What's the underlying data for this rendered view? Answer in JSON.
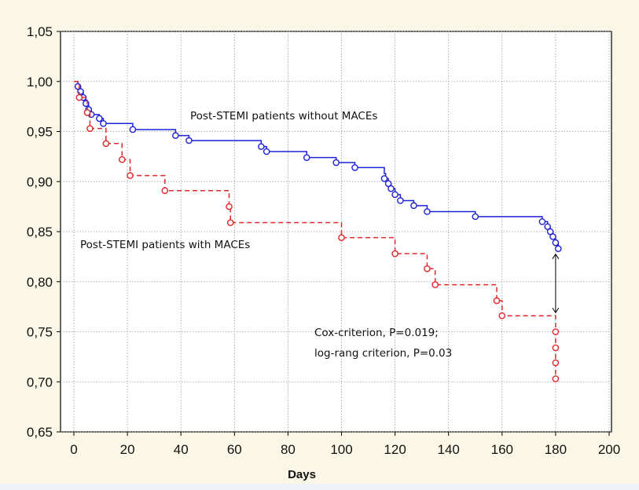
{
  "chart_data": {
    "type": "line",
    "title": "",
    "xlabel": "Days",
    "ylabel": "",
    "xlim": [
      0,
      200
    ],
    "ylim": [
      0.65,
      1.05
    ],
    "x_ticks": [
      0,
      20,
      40,
      60,
      80,
      100,
      120,
      140,
      160,
      180,
      200
    ],
    "y_ticks": [
      1.05,
      1.0,
      0.95,
      0.9,
      0.85,
      0.8,
      0.75,
      0.7,
      0.65
    ],
    "y_tick_labels": [
      "1,05",
      "1,00",
      "0,95",
      "0,90",
      "0,85",
      "0,80",
      "0,75",
      "0,70",
      "0,65"
    ],
    "grid": true,
    "series": [
      {
        "name": "Post-STEMI patients without MACEs",
        "color": "#1f22d6",
        "line_style": "solid",
        "steps": [
          [
            0,
            1.0
          ],
          [
            1.5,
            0.995
          ],
          [
            2.5,
            0.99
          ],
          [
            3.5,
            0.984
          ],
          [
            4.5,
            0.978
          ],
          [
            5.5,
            0.972
          ],
          [
            6.5,
            0.967
          ],
          [
            9.5,
            0.963
          ],
          [
            11,
            0.958
          ],
          [
            22,
            0.952
          ],
          [
            38,
            0.946
          ],
          [
            43,
            0.941
          ],
          [
            70,
            0.935
          ],
          [
            72,
            0.93
          ],
          [
            87,
            0.924
          ],
          [
            98,
            0.919
          ],
          [
            105,
            0.914
          ],
          [
            116,
            0.908
          ],
          [
            116.5,
            0.903
          ],
          [
            117.5,
            0.898
          ],
          [
            118.5,
            0.893
          ],
          [
            120,
            0.887
          ],
          [
            122,
            0.881
          ],
          [
            127,
            0.876
          ],
          [
            132,
            0.87
          ],
          [
            150,
            0.865
          ],
          [
            175,
            0.86
          ],
          [
            177,
            0.855
          ],
          [
            178,
            0.85
          ],
          [
            179,
            0.845
          ],
          [
            180,
            0.839
          ],
          [
            181,
            0.833
          ]
        ],
        "censored": [
          [
            1.5,
            0.995
          ],
          [
            2.5,
            0.99
          ],
          [
            3.5,
            0.984
          ],
          [
            4.5,
            0.978
          ],
          [
            5.5,
            0.972
          ],
          [
            6.5,
            0.967
          ],
          [
            9.5,
            0.963
          ],
          [
            11,
            0.958
          ],
          [
            22,
            0.952
          ],
          [
            38,
            0.946
          ],
          [
            43,
            0.941
          ],
          [
            70,
            0.935
          ],
          [
            72,
            0.93
          ],
          [
            87,
            0.924
          ],
          [
            98,
            0.919
          ],
          [
            105,
            0.914
          ],
          [
            116,
            0.903
          ],
          [
            117.5,
            0.898
          ],
          [
            118.5,
            0.893
          ],
          [
            120,
            0.887
          ],
          [
            122,
            0.881
          ],
          [
            127,
            0.876
          ],
          [
            132,
            0.87
          ],
          [
            150,
            0.865
          ],
          [
            175,
            0.86
          ],
          [
            177,
            0.855
          ],
          [
            178,
            0.85
          ],
          [
            179,
            0.845
          ],
          [
            180,
            0.839
          ],
          [
            181,
            0.833
          ]
        ],
        "end_x": 181
      },
      {
        "name": "Post-STEMI patients with MACEs",
        "color": "#e2262a",
        "line_style": "dashed",
        "steps": [
          [
            0,
            1.0
          ],
          [
            2,
            0.984
          ],
          [
            5,
            0.969
          ],
          [
            6,
            0.953
          ],
          [
            12,
            0.938
          ],
          [
            18,
            0.922
          ],
          [
            21,
            0.906
          ],
          [
            34,
            0.891
          ],
          [
            58,
            0.875
          ],
          [
            58.5,
            0.859
          ],
          [
            100,
            0.844
          ],
          [
            120,
            0.828
          ],
          [
            132,
            0.813
          ],
          [
            135,
            0.797
          ],
          [
            158,
            0.781
          ],
          [
            160,
            0.766
          ],
          [
            180,
            0.75
          ],
          [
            180,
            0.734
          ],
          [
            180,
            0.719
          ],
          [
            180,
            0.703
          ]
        ],
        "censored": [
          [
            2,
            0.984
          ],
          [
            5,
            0.969
          ],
          [
            6,
            0.953
          ],
          [
            12,
            0.938
          ],
          [
            18,
            0.922
          ],
          [
            21,
            0.906
          ],
          [
            34,
            0.891
          ],
          [
            58,
            0.875
          ],
          [
            58.5,
            0.859
          ],
          [
            100,
            0.844
          ],
          [
            120,
            0.828
          ],
          [
            132,
            0.813
          ],
          [
            135,
            0.797
          ],
          [
            158,
            0.781
          ],
          [
            160,
            0.766
          ],
          [
            180,
            0.75
          ],
          [
            180,
            0.734
          ],
          [
            180,
            0.719
          ],
          [
            180,
            0.703
          ]
        ],
        "end_x": 180
      }
    ],
    "annotations": [
      {
        "text": "Post-STEMI patients without MACEs"
      },
      {
        "text": "Post-STEMI patients with MACEs"
      },
      {
        "text": "Cox-criterion, P=0.019;"
      },
      {
        "text": "log-rang criterion, P=0.03"
      }
    ],
    "comparison_arrow": {
      "x": 180,
      "y_from": 0.833,
      "y_to": 0.766
    }
  }
}
